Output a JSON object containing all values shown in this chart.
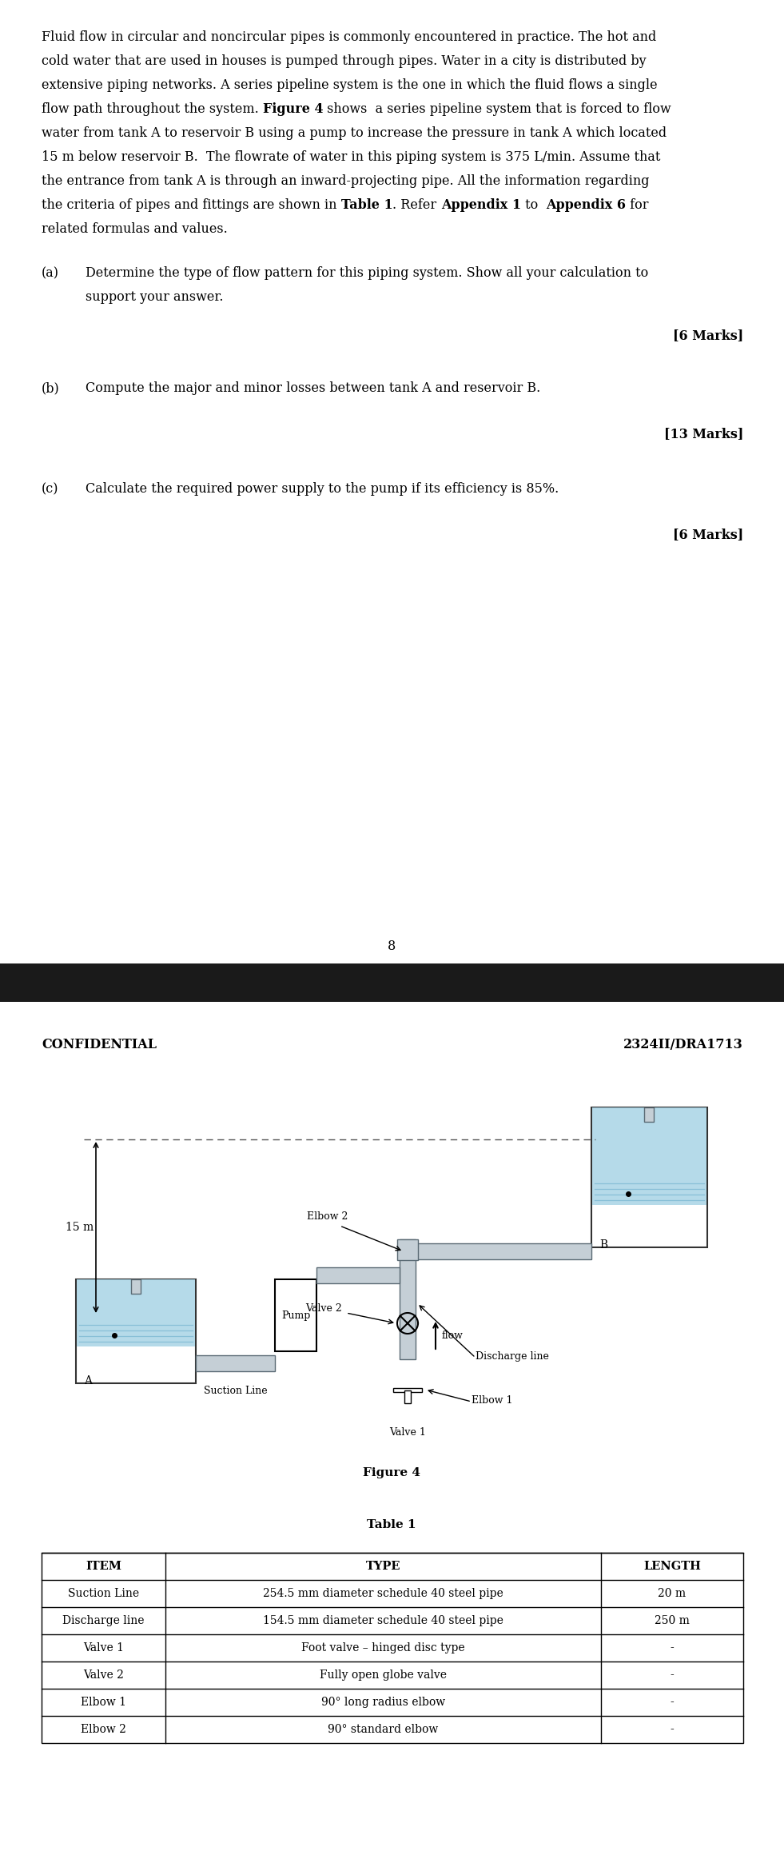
{
  "page1_text": {
    "intro_lines": [
      "Fluid flow in circular and noncircular pipes is commonly encountered in practice. The hot and",
      "cold water that are used in houses is pumped through pipes. Water in a city is distributed by",
      "extensive piping networks. A series pipeline system is the one in which the fluid flows a single",
      "flow path throughout the system. Figure 4 shows  a series pipeline system that is forced to flow",
      "water from tank A to reservoir B using a pump to increase the pressure in tank A which located",
      "15 m below reservoir B.  The flowrate of water in this piping system is 375 L/min. Assume that",
      "the entrance from tank A is through an inward-projecting pipe. All the information regarding",
      "the criteria of pipes and fittings are shown in Table 1. Refer Appendix 1 to  Appendix 6 for",
      "related formulas and values."
    ],
    "bold_in_lines": {
      "3": [
        "Figure 4"
      ],
      "7": [
        "Table 1",
        "Appendix 1",
        "Appendix 6"
      ]
    },
    "q_a_label": "(a)",
    "q_a_text1": "Determine the type of flow pattern for this piping system. Show all your calculation to",
    "q_a_text2": "support your answer.",
    "q_a_marks": "[6 Marks]",
    "q_b_label": "(b)",
    "q_b_text": "Compute the major and minor losses between tank A and reservoir B.",
    "q_b_marks": "[13 Marks]",
    "q_c_label": "(c)",
    "q_c_text": "Calculate the required power supply to the pump if its efficiency is 85%.",
    "q_c_marks": "[6 Marks]",
    "page_number": "8"
  },
  "page2_text": {
    "confidential": "CONFIDENTIAL",
    "doc_id": "2324II/DRA1713",
    "figure_caption": "Figure 4",
    "table_title": "Table 1",
    "table_headers": [
      "ITEM",
      "TYPE",
      "LENGTH"
    ],
    "table_rows": [
      [
        "Suction Line",
        "254.5 mm diameter schedule 40 steel pipe",
        "20 m"
      ],
      [
        "Discharge line",
        "154.5 mm diameter schedule 40 steel pipe",
        "250 m"
      ],
      [
        "Valve 1",
        "Foot valve – hinged disc type",
        "-"
      ],
      [
        "Valve 2",
        "Fully open globe valve",
        "-"
      ],
      [
        "Elbow 1",
        "90° long radius elbow",
        "-"
      ],
      [
        "Elbow 2",
        "90° standard elbow",
        "-"
      ]
    ]
  },
  "colors": {
    "water": "#a8d4e6",
    "pipe_fill": "#c5cfd6",
    "pipe_edge": "#5a6a74",
    "tank_edge": "#333333",
    "background": "#ffffff",
    "black_bar": "#1a1a1a",
    "wave": "#6aaecc",
    "dashed": "#555555"
  }
}
